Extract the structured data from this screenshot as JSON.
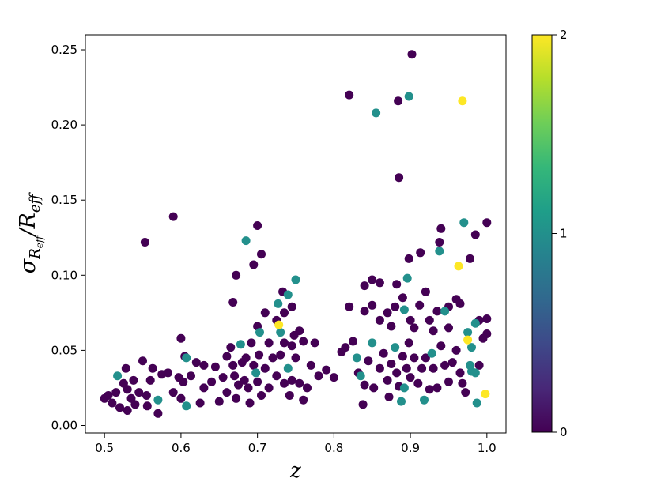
{
  "chart_data": {
    "type": "scatter",
    "title": "",
    "xlabel": "z",
    "ylabel": {
      "base": "σ",
      "sub": "R",
      "subsub": "eff",
      "sep": "/",
      "main": "R",
      "mainsub": "eff"
    },
    "xlim": [
      0.475,
      1.025
    ],
    "ylim": [
      -0.005,
      0.26
    ],
    "xticks": [
      0.5,
      0.6,
      0.7,
      0.8,
      0.9,
      1.0
    ],
    "xtick_labels": [
      "0.5",
      "0.6",
      "0.7",
      "0.8",
      "0.9",
      "1.0"
    ],
    "yticks": [
      0.0,
      0.05,
      0.1,
      0.15,
      0.2,
      0.25
    ],
    "ytick_labels": [
      "0.00",
      "0.05",
      "0.10",
      "0.15",
      "0.20",
      "0.25"
    ],
    "colorbar": {
      "colormap": "viridis",
      "range": [
        0,
        2
      ],
      "ticks": [
        0,
        1,
        2
      ],
      "tick_labels": [
        "0",
        "1",
        "2"
      ],
      "colors": [
        "#440154",
        "#482878",
        "#3e4989",
        "#31688e",
        "#26828e",
        "#1f9e89",
        "#35b779",
        "#6ece58",
        "#b5de2b",
        "#fde725"
      ]
    },
    "grid": false,
    "points": [
      [
        0.902,
        0.247,
        0
      ],
      [
        0.82,
        0.22,
        0
      ],
      [
        0.884,
        0.216,
        0
      ],
      [
        0.898,
        0.219,
        1
      ],
      [
        0.855,
        0.208,
        1
      ],
      [
        0.968,
        0.216,
        2
      ],
      [
        0.885,
        0.165,
        0
      ],
      [
        0.59,
        0.139,
        0
      ],
      [
        0.553,
        0.122,
        0
      ],
      [
        0.685,
        0.123,
        1
      ],
      [
        0.7,
        0.133,
        0
      ],
      [
        0.705,
        0.114,
        0
      ],
      [
        0.695,
        0.107,
        0
      ],
      [
        0.672,
        0.1,
        0
      ],
      [
        0.668,
        0.082,
        0
      ],
      [
        0.75,
        0.097,
        1
      ],
      [
        0.733,
        0.089,
        0
      ],
      [
        0.74,
        0.087,
        1
      ],
      [
        0.727,
        0.081,
        1
      ],
      [
        0.745,
        0.079,
        0
      ],
      [
        0.71,
        0.075,
        0
      ],
      [
        0.735,
        0.075,
        0
      ],
      [
        0.728,
        0.067,
        2
      ],
      [
        0.725,
        0.07,
        0
      ],
      [
        0.7,
        0.066,
        0
      ],
      [
        0.703,
        0.062,
        1
      ],
      [
        0.73,
        0.062,
        1
      ],
      [
        0.748,
        0.06,
        0
      ],
      [
        0.755,
        0.063,
        0
      ],
      [
        0.715,
        0.055,
        0
      ],
      [
        0.735,
        0.055,
        0
      ],
      [
        0.745,
        0.053,
        0
      ],
      [
        0.76,
        0.056,
        0
      ],
      [
        0.775,
        0.055,
        0
      ],
      [
        0.94,
        0.131,
        0
      ],
      [
        0.97,
        0.135,
        1
      ],
      [
        1.0,
        0.135,
        0
      ],
      [
        0.985,
        0.127,
        0
      ],
      [
        0.938,
        0.122,
        0
      ],
      [
        0.938,
        0.116,
        1
      ],
      [
        0.913,
        0.115,
        0
      ],
      [
        0.898,
        0.111,
        0
      ],
      [
        0.978,
        0.111,
        0
      ],
      [
        0.963,
        0.106,
        2
      ],
      [
        0.85,
        0.097,
        0
      ],
      [
        0.84,
        0.093,
        0
      ],
      [
        0.86,
        0.095,
        0
      ],
      [
        0.882,
        0.094,
        0
      ],
      [
        0.896,
        0.098,
        1
      ],
      [
        0.89,
        0.085,
        0
      ],
      [
        0.92,
        0.089,
        0
      ],
      [
        0.912,
        0.08,
        0
      ],
      [
        0.88,
        0.079,
        0
      ],
      [
        0.892,
        0.077,
        1
      ],
      [
        0.95,
        0.079,
        0
      ],
      [
        0.96,
        0.084,
        0
      ],
      [
        0.935,
        0.076,
        0
      ],
      [
        0.945,
        0.076,
        1
      ],
      [
        0.965,
        0.081,
        0
      ],
      [
        0.99,
        0.07,
        0
      ],
      [
        1.0,
        0.071,
        0
      ],
      [
        0.985,
        0.068,
        1
      ],
      [
        0.82,
        0.079,
        0
      ],
      [
        0.84,
        0.076,
        0
      ],
      [
        0.85,
        0.08,
        0
      ],
      [
        0.86,
        0.07,
        0
      ],
      [
        0.87,
        0.075,
        0
      ],
      [
        0.875,
        0.066,
        0
      ],
      [
        0.9,
        0.07,
        0
      ],
      [
        0.905,
        0.065,
        0
      ],
      [
        0.925,
        0.07,
        0
      ],
      [
        0.93,
        0.063,
        0
      ],
      [
        0.95,
        0.065,
        0
      ],
      [
        0.975,
        0.062,
        1
      ],
      [
        0.98,
        0.052,
        1
      ],
      [
        1.0,
        0.061,
        0
      ],
      [
        0.995,
        0.058,
        0
      ],
      [
        0.5,
        0.018,
        0
      ],
      [
        0.505,
        0.02,
        0
      ],
      [
        0.51,
        0.015,
        0
      ],
      [
        0.515,
        0.022,
        0
      ],
      [
        0.517,
        0.033,
        1
      ],
      [
        0.52,
        0.012,
        0
      ],
      [
        0.525,
        0.028,
        0
      ],
      [
        0.528,
        0.038,
        0
      ],
      [
        0.53,
        0.024,
        0
      ],
      [
        0.53,
        0.01,
        0
      ],
      [
        0.535,
        0.018,
        0
      ],
      [
        0.538,
        0.03,
        0
      ],
      [
        0.54,
        0.014,
        0
      ],
      [
        0.545,
        0.022,
        0
      ],
      [
        0.55,
        0.043,
        0
      ],
      [
        0.555,
        0.02,
        0
      ],
      [
        0.556,
        0.013,
        0
      ],
      [
        0.56,
        0.03,
        0
      ],
      [
        0.563,
        0.038,
        0
      ],
      [
        0.57,
        0.017,
        1
      ],
      [
        0.57,
        0.008,
        0
      ],
      [
        0.575,
        0.034,
        0
      ],
      [
        0.583,
        0.035,
        0
      ],
      [
        0.59,
        0.022,
        0
      ],
      [
        0.597,
        0.032,
        0
      ],
      [
        0.6,
        0.058,
        0
      ],
      [
        0.605,
        0.046,
        0
      ],
      [
        0.603,
        0.029,
        0
      ],
      [
        0.6,
        0.018,
        0
      ],
      [
        0.607,
        0.045,
        1
      ],
      [
        0.607,
        0.013,
        1
      ],
      [
        0.613,
        0.033,
        0
      ],
      [
        0.62,
        0.042,
        0
      ],
      [
        0.625,
        0.015,
        0
      ],
      [
        0.63,
        0.04,
        0
      ],
      [
        0.63,
        0.025,
        0
      ],
      [
        0.64,
        0.029,
        0
      ],
      [
        0.645,
        0.039,
        0
      ],
      [
        0.65,
        0.016,
        0
      ],
      [
        0.655,
        0.032,
        0
      ],
      [
        0.66,
        0.046,
        0
      ],
      [
        0.66,
        0.022,
        0
      ],
      [
        0.665,
        0.052,
        0
      ],
      [
        0.668,
        0.04,
        0
      ],
      [
        0.67,
        0.033,
        0
      ],
      [
        0.672,
        0.018,
        0
      ],
      [
        0.675,
        0.027,
        0
      ],
      [
        0.678,
        0.054,
        1
      ],
      [
        0.68,
        0.042,
        0
      ],
      [
        0.683,
        0.03,
        0
      ],
      [
        0.685,
        0.045,
        0
      ],
      [
        0.688,
        0.025,
        0
      ],
      [
        0.69,
        0.015,
        0
      ],
      [
        0.692,
        0.055,
        0
      ],
      [
        0.695,
        0.04,
        0
      ],
      [
        0.698,
        0.035,
        1
      ],
      [
        0.7,
        0.029,
        0
      ],
      [
        0.702,
        0.047,
        0
      ],
      [
        0.705,
        0.02,
        0
      ],
      [
        0.71,
        0.038,
        0
      ],
      [
        0.715,
        0.025,
        0
      ],
      [
        0.72,
        0.045,
        0
      ],
      [
        0.725,
        0.033,
        0
      ],
      [
        0.73,
        0.047,
        0
      ],
      [
        0.735,
        0.028,
        0
      ],
      [
        0.74,
        0.038,
        1
      ],
      [
        0.742,
        0.02,
        0
      ],
      [
        0.745,
        0.03,
        0
      ],
      [
        0.75,
        0.045,
        0
      ],
      [
        0.755,
        0.028,
        0
      ],
      [
        0.76,
        0.017,
        0
      ],
      [
        0.765,
        0.025,
        0
      ],
      [
        0.77,
        0.04,
        0
      ],
      [
        0.78,
        0.033,
        0
      ],
      [
        0.79,
        0.037,
        0
      ],
      [
        0.8,
        0.032,
        0
      ],
      [
        0.81,
        0.049,
        0
      ],
      [
        0.815,
        0.052,
        0
      ],
      [
        0.825,
        0.056,
        0
      ],
      [
        0.83,
        0.045,
        1
      ],
      [
        0.832,
        0.035,
        0
      ],
      [
        0.835,
        0.033,
        1
      ],
      [
        0.838,
        0.014,
        0
      ],
      [
        0.84,
        0.027,
        0
      ],
      [
        0.845,
        0.043,
        0
      ],
      [
        0.85,
        0.055,
        1
      ],
      [
        0.852,
        0.025,
        0
      ],
      [
        0.86,
        0.038,
        0
      ],
      [
        0.865,
        0.048,
        0
      ],
      [
        0.87,
        0.03,
        0
      ],
      [
        0.872,
        0.019,
        0
      ],
      [
        0.875,
        0.041,
        0
      ],
      [
        0.88,
        0.052,
        1
      ],
      [
        0.882,
        0.035,
        0
      ],
      [
        0.885,
        0.026,
        0
      ],
      [
        0.888,
        0.016,
        1
      ],
      [
        0.89,
        0.046,
        0
      ],
      [
        0.892,
        0.025,
        1
      ],
      [
        0.895,
        0.038,
        0
      ],
      [
        0.898,
        0.055,
        0
      ],
      [
        0.9,
        0.032,
        0
      ],
      [
        0.905,
        0.045,
        0
      ],
      [
        0.91,
        0.028,
        0
      ],
      [
        0.915,
        0.038,
        0
      ],
      [
        0.918,
        0.017,
        1
      ],
      [
        0.92,
        0.045,
        0
      ],
      [
        0.925,
        0.024,
        0
      ],
      [
        0.928,
        0.048,
        1
      ],
      [
        0.93,
        0.038,
        0
      ],
      [
        0.935,
        0.025,
        0
      ],
      [
        0.94,
        0.053,
        0
      ],
      [
        0.945,
        0.04,
        0
      ],
      [
        0.95,
        0.029,
        0
      ],
      [
        0.955,
        0.042,
        0
      ],
      [
        0.96,
        0.05,
        0
      ],
      [
        0.965,
        0.035,
        0
      ],
      [
        0.968,
        0.028,
        0
      ],
      [
        0.972,
        0.022,
        0
      ],
      [
        0.975,
        0.057,
        2
      ],
      [
        0.978,
        0.04,
        1
      ],
      [
        0.98,
        0.036,
        1
      ],
      [
        0.985,
        0.035,
        1
      ],
      [
        0.987,
        0.015,
        1
      ],
      [
        0.99,
        0.04,
        0
      ],
      [
        0.998,
        0.021,
        2
      ]
    ]
  }
}
